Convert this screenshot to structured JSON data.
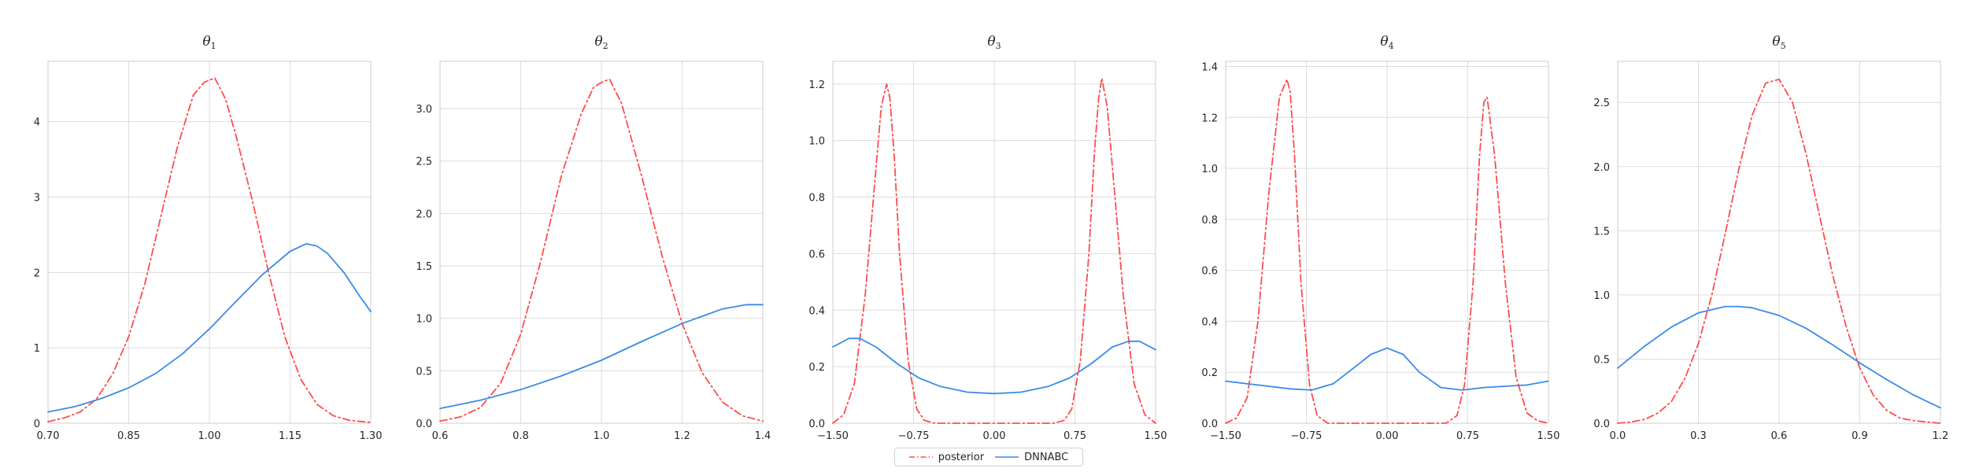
{
  "chart_data": [
    {
      "type": "line",
      "title": "θ1",
      "title_base": "θ",
      "title_sub": "1",
      "xlim": [
        0.7,
        1.3
      ],
      "ylim": [
        0,
        4.8
      ],
      "xticks": [
        0.7,
        0.85,
        1.0,
        1.15,
        1.3
      ],
      "xtick_labels": [
        "0.70",
        "0.85",
        "1.00",
        "1.15",
        "1.30"
      ],
      "yticks": [
        0,
        1,
        2,
        3,
        4
      ],
      "ytick_labels": [
        "0",
        "1",
        "2",
        "3",
        "4"
      ],
      "grid": true,
      "series": [
        {
          "name": "posterior",
          "style": "dashdot",
          "color": "#ff4c4c",
          "x": [
            0.7,
            0.73,
            0.76,
            0.79,
            0.82,
            0.85,
            0.88,
            0.91,
            0.94,
            0.97,
            0.99,
            1.01,
            1.03,
            1.05,
            1.08,
            1.11,
            1.14,
            1.17,
            1.2,
            1.23,
            1.26,
            1.3
          ],
          "y": [
            0.02,
            0.07,
            0.15,
            0.32,
            0.65,
            1.15,
            1.85,
            2.75,
            3.65,
            4.35,
            4.52,
            4.58,
            4.3,
            3.8,
            2.95,
            2.0,
            1.15,
            0.58,
            0.25,
            0.1,
            0.04,
            0.01
          ]
        },
        {
          "name": "DNNABC",
          "style": "solid",
          "color": "#3b8be8",
          "x": [
            0.7,
            0.75,
            0.8,
            0.85,
            0.9,
            0.95,
            1.0,
            1.05,
            1.1,
            1.15,
            1.18,
            1.2,
            1.22,
            1.25,
            1.28,
            1.3
          ],
          "y": [
            0.15,
            0.22,
            0.33,
            0.47,
            0.66,
            0.92,
            1.25,
            1.62,
            1.98,
            2.28,
            2.38,
            2.35,
            2.25,
            2.0,
            1.68,
            1.48
          ]
        }
      ]
    },
    {
      "type": "line",
      "title": "θ2",
      "title_base": "θ",
      "title_sub": "2",
      "xlim": [
        0.6,
        1.4
      ],
      "ylim": [
        0,
        3.45
      ],
      "xticks": [
        0.6,
        0.8,
        1.0,
        1.2,
        1.4
      ],
      "xtick_labels": [
        "0.6",
        "0.8",
        "1.0",
        "1.2",
        "1.4"
      ],
      "yticks": [
        0,
        0.5,
        1.0,
        1.5,
        2.0,
        2.5,
        3.0
      ],
      "ytick_labels": [
        "0.0",
        "0.5",
        "1.0",
        "1.5",
        "2.0",
        "2.5",
        "3.0"
      ],
      "grid": true,
      "series": [
        {
          "name": "posterior",
          "style": "dashdot",
          "color": "#ff4c4c",
          "x": [
            0.6,
            0.65,
            0.7,
            0.75,
            0.8,
            0.85,
            0.9,
            0.95,
            0.98,
            1.0,
            1.02,
            1.05,
            1.1,
            1.15,
            1.2,
            1.25,
            1.3,
            1.35,
            1.4
          ],
          "y": [
            0.02,
            0.06,
            0.15,
            0.38,
            0.85,
            1.55,
            2.35,
            2.95,
            3.2,
            3.25,
            3.28,
            3.05,
            2.35,
            1.6,
            0.95,
            0.48,
            0.2,
            0.07,
            0.02
          ]
        },
        {
          "name": "DNNABC",
          "style": "solid",
          "color": "#3b8be8",
          "x": [
            0.6,
            0.7,
            0.8,
            0.9,
            1.0,
            1.1,
            1.2,
            1.3,
            1.36,
            1.4
          ],
          "y": [
            0.14,
            0.22,
            0.32,
            0.45,
            0.6,
            0.78,
            0.95,
            1.09,
            1.13,
            1.13
          ]
        }
      ]
    },
    {
      "type": "line",
      "title": "θ3",
      "title_base": "θ",
      "title_sub": "3",
      "xlim": [
        -1.5,
        1.5
      ],
      "ylim": [
        0,
        1.28
      ],
      "xticks": [
        -1.5,
        -0.75,
        0.0,
        0.75,
        1.5
      ],
      "xtick_labels": [
        "−1.50",
        "−0.75",
        "0.00",
        "0.75",
        "1.50"
      ],
      "yticks": [
        0,
        0.2,
        0.4,
        0.6,
        0.8,
        1.0,
        1.2
      ],
      "ytick_labels": [
        "0.0",
        "0.2",
        "0.4",
        "0.6",
        "0.8",
        "1.0",
        "1.2"
      ],
      "grid": true,
      "series": [
        {
          "name": "posterior",
          "style": "dashdot",
          "color": "#ff4c4c",
          "x": [
            -1.5,
            -1.4,
            -1.3,
            -1.2,
            -1.1,
            -1.05,
            -1.0,
            -0.97,
            -0.93,
            -0.88,
            -0.8,
            -0.72,
            -0.65,
            -0.55,
            -0.4,
            0.0,
            0.4,
            0.55,
            0.65,
            0.72,
            0.8,
            0.88,
            0.93,
            0.97,
            1.0,
            1.05,
            1.1,
            1.2,
            1.3,
            1.4,
            1.5
          ],
          "y": [
            0.0,
            0.03,
            0.14,
            0.45,
            0.9,
            1.12,
            1.2,
            1.15,
            0.95,
            0.6,
            0.22,
            0.05,
            0.01,
            0.0,
            0.0,
            0.0,
            0.0,
            0.0,
            0.01,
            0.05,
            0.22,
            0.6,
            0.95,
            1.15,
            1.22,
            1.12,
            0.9,
            0.45,
            0.14,
            0.03,
            0.0
          ]
        },
        {
          "name": "DNNABC",
          "style": "solid",
          "color": "#3b8be8",
          "x": [
            -1.5,
            -1.35,
            -1.25,
            -1.1,
            -0.9,
            -0.7,
            -0.5,
            -0.25,
            0.0,
            0.25,
            0.5,
            0.7,
            0.9,
            1.1,
            1.25,
            1.35,
            1.5
          ],
          "y": [
            0.27,
            0.3,
            0.3,
            0.27,
            0.21,
            0.16,
            0.13,
            0.11,
            0.105,
            0.11,
            0.13,
            0.16,
            0.21,
            0.27,
            0.29,
            0.29,
            0.26
          ]
        }
      ]
    },
    {
      "type": "line",
      "title": "θ4",
      "title_base": "θ",
      "title_sub": "4",
      "xlim": [
        -1.5,
        1.5
      ],
      "ylim": [
        0,
        1.42
      ],
      "xticks": [
        -1.5,
        -0.75,
        0.0,
        0.75,
        1.5
      ],
      "xtick_labels": [
        "−1.50",
        "−0.75",
        "0.00",
        "0.75",
        "1.50"
      ],
      "yticks": [
        0,
        0.2,
        0.4,
        0.6,
        0.8,
        1.0,
        1.2,
        1.4
      ],
      "ytick_labels": [
        "0.0",
        "0.2",
        "0.4",
        "0.6",
        "0.8",
        "1.0",
        "1.2",
        "1.4"
      ],
      "grid": true,
      "series": [
        {
          "name": "posterior",
          "style": "dashdot",
          "color": "#ff4c4c",
          "x": [
            -1.5,
            -1.4,
            -1.3,
            -1.2,
            -1.1,
            -1.0,
            -0.93,
            -0.9,
            -0.86,
            -0.8,
            -0.72,
            -0.65,
            -0.55,
            -0.4,
            0.0,
            0.4,
            0.55,
            0.65,
            0.72,
            0.8,
            0.86,
            0.9,
            0.93,
            1.0,
            1.1,
            1.2,
            1.3,
            1.4,
            1.5
          ],
          "y": [
            0.0,
            0.02,
            0.1,
            0.4,
            0.9,
            1.28,
            1.35,
            1.3,
            1.05,
            0.55,
            0.15,
            0.03,
            0.0,
            0.0,
            0.0,
            0.0,
            0.0,
            0.03,
            0.15,
            0.55,
            1.05,
            1.26,
            1.28,
            1.05,
            0.55,
            0.18,
            0.04,
            0.01,
            0.0
          ]
        },
        {
          "name": "DNNABC",
          "style": "solid",
          "color": "#3b8be8",
          "x": [
            -1.5,
            -1.3,
            -1.1,
            -0.9,
            -0.7,
            -0.5,
            -0.3,
            -0.15,
            0.0,
            0.15,
            0.3,
            0.5,
            0.7,
            0.9,
            1.1,
            1.3,
            1.5
          ],
          "y": [
            0.165,
            0.155,
            0.145,
            0.135,
            0.13,
            0.155,
            0.22,
            0.27,
            0.295,
            0.27,
            0.2,
            0.14,
            0.13,
            0.14,
            0.145,
            0.15,
            0.165
          ]
        }
      ]
    },
    {
      "type": "line",
      "title": "θ5",
      "title_base": "θ",
      "title_sub": "5",
      "xlim": [
        0.0,
        1.2
      ],
      "ylim": [
        0,
        2.82
      ],
      "xticks": [
        0.0,
        0.3,
        0.6,
        0.9,
        1.2
      ],
      "xtick_labels": [
        "0.0",
        "0.3",
        "0.6",
        "0.9",
        "1.2"
      ],
      "yticks": [
        0,
        0.5,
        1.0,
        1.5,
        2.0,
        2.5
      ],
      "ytick_labels": [
        "0.0",
        "0.5",
        "1.0",
        "1.5",
        "2.0",
        "2.5"
      ],
      "grid": true,
      "series": [
        {
          "name": "posterior",
          "style": "dashdot",
          "color": "#ff4c4c",
          "x": [
            0.0,
            0.05,
            0.1,
            0.15,
            0.2,
            0.25,
            0.3,
            0.35,
            0.4,
            0.45,
            0.5,
            0.55,
            0.6,
            0.65,
            0.7,
            0.75,
            0.8,
            0.85,
            0.9,
            0.95,
            1.0,
            1.05,
            1.1,
            1.15,
            1.2
          ],
          "y": [
            0.0,
            0.01,
            0.03,
            0.08,
            0.17,
            0.35,
            0.62,
            1.0,
            1.48,
            1.98,
            2.4,
            2.65,
            2.68,
            2.5,
            2.1,
            1.62,
            1.15,
            0.75,
            0.43,
            0.22,
            0.1,
            0.04,
            0.02,
            0.01,
            0.0
          ]
        },
        {
          "name": "DNNABC",
          "style": "solid",
          "color": "#3b8be8",
          "x": [
            0.0,
            0.1,
            0.2,
            0.3,
            0.4,
            0.45,
            0.5,
            0.6,
            0.7,
            0.8,
            0.9,
            1.0,
            1.1,
            1.2
          ],
          "y": [
            0.43,
            0.6,
            0.75,
            0.86,
            0.91,
            0.91,
            0.9,
            0.84,
            0.74,
            0.61,
            0.47,
            0.34,
            0.22,
            0.12
          ]
        }
      ]
    }
  ],
  "legend": {
    "placement": "bottom-center",
    "items": [
      {
        "label": "posterior",
        "color": "#ff4c4c",
        "style": "dashdot"
      },
      {
        "label": "DNNABC",
        "color": "#3b8be8",
        "style": "solid"
      }
    ]
  }
}
